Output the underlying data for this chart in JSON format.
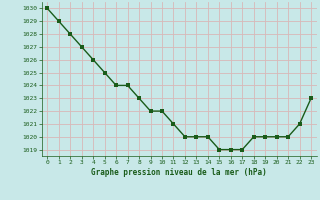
{
  "x": [
    0,
    1,
    2,
    3,
    4,
    5,
    6,
    7,
    8,
    9,
    10,
    11,
    12,
    13,
    14,
    15,
    16,
    17,
    18,
    19,
    20,
    21,
    22,
    23
  ],
  "y": [
    1030,
    1029,
    1028,
    1027,
    1026,
    1025,
    1024,
    1024,
    1023,
    1022,
    1022,
    1021,
    1020,
    1020,
    1020,
    1019,
    1019,
    1019,
    1020,
    1020,
    1020,
    1020,
    1021,
    1023
  ],
  "xlabel": "Graphe pression niveau de la mer (hPa)",
  "ylim_min": 1019,
  "ylim_max": 1030,
  "line_color": "#1a5c1a",
  "marker_color": "#1a5c1a",
  "bg_color": "#c8e8e8",
  "grid_color": "#d8b8b8",
  "xlabel_color": "#1a5c1a",
  "tick_label_color": "#1a5c1a",
  "marker_size": 2.5,
  "line_width": 1.0
}
